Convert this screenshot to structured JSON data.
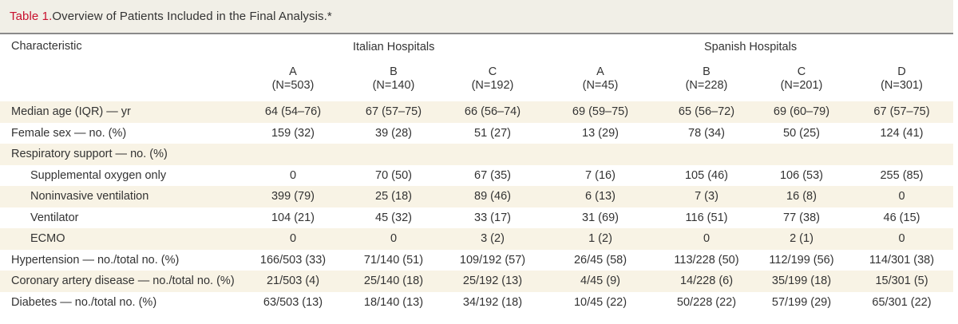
{
  "table": {
    "label": "Table 1.",
    "title": "Overview of Patients Included in the Final Analysis.*",
    "characteristic_header": "Characteristic",
    "group_headers": [
      "Italian Hospitals",
      "Spanish Hospitals"
    ],
    "columns": [
      {
        "letter": "A",
        "n": "(N=503)"
      },
      {
        "letter": "B",
        "n": "(N=140)"
      },
      {
        "letter": "C",
        "n": "(N=192)"
      },
      {
        "letter": "A",
        "n": "(N=45)"
      },
      {
        "letter": "B",
        "n": "(N=228)"
      },
      {
        "letter": "C",
        "n": "(N=201)"
      },
      {
        "letter": "D",
        "n": "(N=301)"
      }
    ],
    "rows": [
      {
        "label": "Median age (IQR) — yr",
        "indent": false,
        "shaded": true,
        "values": [
          "64 (54–76)",
          "67 (57–75)",
          "66 (56–74)",
          "69 (59–75)",
          "65 (56–72)",
          "69 (60–79)",
          "67 (57–75)"
        ]
      },
      {
        "label": "Female sex — no. (%)",
        "indent": false,
        "shaded": false,
        "values": [
          "159 (32)",
          "39 (28)",
          "51 (27)",
          "13 (29)",
          "78 (34)",
          "50 (25)",
          "124 (41)"
        ]
      },
      {
        "label": "Respiratory support — no. (%)",
        "indent": false,
        "shaded": true,
        "values": [
          "",
          "",
          "",
          "",
          "",
          "",
          ""
        ]
      },
      {
        "label": "Supplemental oxygen only",
        "indent": true,
        "shaded": false,
        "values": [
          "0",
          "70 (50)",
          "67 (35)",
          "7 (16)",
          "105 (46)",
          "106 (53)",
          "255 (85)"
        ]
      },
      {
        "label": "Noninvasive ventilation",
        "indent": true,
        "shaded": true,
        "values": [
          "399 (79)",
          "25 (18)",
          "89 (46)",
          "6 (13)",
          "7 (3)",
          "16 (8)",
          "0"
        ]
      },
      {
        "label": "Ventilator",
        "indent": true,
        "shaded": false,
        "values": [
          "104 (21)",
          "45 (32)",
          "33 (17)",
          "31 (69)",
          "116 (51)",
          "77 (38)",
          "46 (15)"
        ]
      },
      {
        "label": "ECMO",
        "indent": true,
        "shaded": true,
        "values": [
          "0",
          "0",
          "3 (2)",
          "1 (2)",
          "0",
          "2 (1)",
          "0"
        ]
      },
      {
        "label": "Hypertension — no./total no. (%)",
        "indent": false,
        "shaded": false,
        "values": [
          "166/503 (33)",
          "71/140 (51)",
          "109/192 (57)",
          "26/45 (58)",
          "113/228 (50)",
          "112/199 (56)",
          "114/301 (38)"
        ]
      },
      {
        "label": "Coronary artery disease — no./total no. (%)",
        "indent": false,
        "shaded": true,
        "values": [
          "21/503 (4)",
          "25/140 (18)",
          "25/192 (13)",
          "4/45 (9)",
          "14/228 (6)",
          "35/199 (18)",
          "15/301 (5)"
        ]
      },
      {
        "label": "Diabetes — no./total no. (%)",
        "indent": false,
        "shaded": false,
        "values": [
          "63/503 (13)",
          "18/140 (13)",
          "34/192 (18)",
          "10/45 (22)",
          "50/228 (22)",
          "57/199 (29)",
          "65/301 (22)"
        ]
      }
    ]
  }
}
